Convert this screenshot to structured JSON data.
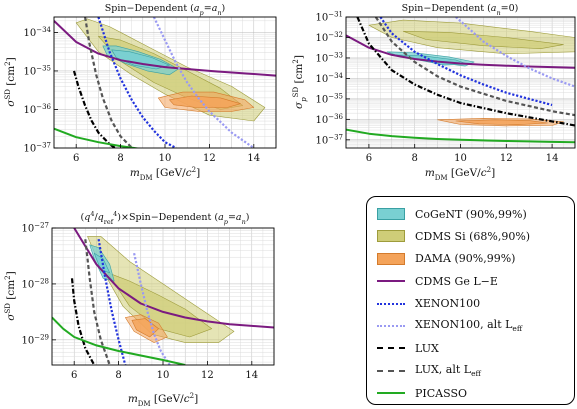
{
  "colors": {
    "CoGeNT": "#79d0d2",
    "CDMS_Si": "#cfcd78",
    "DAMA": "#f4a35a",
    "CDMS_Ge": "#7b1a80",
    "XENON100": "#2233dd",
    "XENON100_alt": "#9a9af2",
    "LUX": "#000000",
    "LUX_alt": "#555555",
    "PICASSO": "#22aa22"
  },
  "legend": {
    "items": [
      {
        "key": "CoGeNT",
        "label": "CoGeNT (90%,99%)",
        "kind": "swatch"
      },
      {
        "key": "CDMS_Si",
        "label": "CDMS Si (68%,90%)",
        "kind": "swatch"
      },
      {
        "key": "DAMA",
        "label": "DAMA (90%,99%)",
        "kind": "swatch"
      },
      {
        "key": "CDMS_Ge",
        "label": "CDMS Ge L−E",
        "kind": "solid"
      },
      {
        "key": "XENON100",
        "label": "XENON100",
        "kind": "dotted"
      },
      {
        "key": "XENON100_alt",
        "label": "XENON100, alt L",
        "sub": "eff",
        "kind": "dotted"
      },
      {
        "key": "LUX",
        "label": "LUX",
        "kind": "dashdot"
      },
      {
        "key": "LUX_alt",
        "label": "LUX, alt L",
        "sub": "eff",
        "kind": "dashed"
      },
      {
        "key": "PICASSO",
        "label": "PICASSO",
        "kind": "solid"
      }
    ]
  },
  "chart_data": [
    {
      "type": "line",
      "title": "Spin−Dependent (a_p=a_n)",
      "xlabel": "m_DM [GeV/c^2]",
      "ylabel": "σ^SD [cm^2]",
      "x_ticks": [
        "6",
        "8",
        "10",
        "12",
        "14"
      ],
      "y_ticks": [
        "10^-37",
        "10^-36",
        "10^-35",
        "10^-34"
      ],
      "xlim": [
        5,
        15
      ],
      "ylim_log10": [
        -37,
        -33.6
      ],
      "yscale": "log",
      "grid": true,
      "series": [
        {
          "name": "CDMS Ge L−E",
          "x": [
            5,
            6,
            7,
            8,
            9,
            10,
            11,
            12,
            13,
            14,
            15
          ],
          "log10_y": [
            -33.7,
            -34.25,
            -34.55,
            -34.72,
            -34.82,
            -34.9,
            -34.95,
            -35.0,
            -35.04,
            -35.08,
            -35.12
          ]
        },
        {
          "name": "XENON100",
          "x": [
            7.0,
            7.5,
            8.0,
            8.5,
            9.0,
            9.5,
            10.0,
            10.5
          ],
          "log10_y": [
            -33.6,
            -34.5,
            -35.2,
            -35.75,
            -36.2,
            -36.55,
            -36.85,
            -37.0
          ]
        },
        {
          "name": "XENON100, alt L_eff",
          "x": [
            9.5,
            10.0,
            10.5,
            11.0,
            11.5,
            12.0,
            13.0,
            14.0
          ],
          "log10_y": [
            -33.6,
            -34.2,
            -34.8,
            -35.3,
            -35.7,
            -36.05,
            -36.6,
            -37.0
          ]
        },
        {
          "name": "LUX",
          "x": [
            5.9,
            6.1,
            6.4,
            6.7,
            7.0,
            7.5,
            8.0,
            8.6
          ],
          "log10_y": [
            -35.0,
            -35.4,
            -35.9,
            -36.3,
            -36.6,
            -36.9,
            -37.1,
            -37.3
          ]
        },
        {
          "name": "LUX, alt L_eff",
          "x": [
            6.4,
            6.6,
            6.9,
            7.2,
            7.6,
            8.0,
            8.6
          ],
          "log10_y": [
            -33.6,
            -34.3,
            -35.1,
            -35.7,
            -36.3,
            -36.7,
            -37.05
          ]
        },
        {
          "name": "PICASSO",
          "x": [
            5,
            6,
            7,
            8,
            9,
            10,
            11,
            12,
            13,
            14,
            15
          ],
          "log10_y": [
            -36.5,
            -36.72,
            -36.85,
            -36.95,
            -37.03,
            -37.08,
            -37.12,
            -37.15,
            -37.18,
            -37.2,
            -37.22
          ]
        }
      ],
      "regions": [
        {
          "name": "CDMS Si 90%",
          "x": [
            6.0,
            6.5,
            7.5,
            9.0,
            11.0,
            13.0,
            14.5,
            14.0,
            12.0,
            10.0,
            8.5,
            7.0
          ],
          "log10_y": [
            -33.75,
            -33.65,
            -33.85,
            -34.3,
            -34.9,
            -35.4,
            -35.95,
            -36.3,
            -36.15,
            -35.6,
            -35.1,
            -34.5
          ]
        },
        {
          "name": "CDMS Si 68%",
          "x": [
            7.0,
            8.0,
            9.5,
            11.0,
            12.5,
            13.5,
            12.5,
            11.0,
            9.5,
            8.0
          ],
          "log10_y": [
            -34.1,
            -34.2,
            -34.55,
            -35.0,
            -35.45,
            -35.9,
            -36.0,
            -35.7,
            -35.3,
            -34.75
          ]
        },
        {
          "name": "CoGeNT 99%",
          "x": [
            7.2,
            7.8,
            8.8,
            9.8,
            10.6,
            10.2,
            9.2,
            8.2,
            7.4
          ],
          "log10_y": [
            -34.35,
            -34.35,
            -34.5,
            -34.7,
            -34.95,
            -35.1,
            -35.0,
            -34.8,
            -34.6
          ]
        },
        {
          "name": "CoGeNT 90%",
          "x": [
            7.6,
            8.4,
            9.4,
            10.2,
            9.6,
            8.6,
            7.8
          ],
          "log10_y": [
            -34.45,
            -34.5,
            -34.65,
            -34.85,
            -34.95,
            -34.85,
            -34.65
          ]
        },
        {
          "name": "DAMA 99%",
          "x": [
            9.7,
            10.8,
            12.2,
            13.6,
            14.0,
            13.0,
            11.5,
            10.0
          ],
          "log10_y": [
            -35.7,
            -35.55,
            -35.55,
            -35.75,
            -35.95,
            -36.05,
            -36.05,
            -35.95
          ]
        },
        {
          "name": "DAMA 90%",
          "x": [
            10.2,
            11.2,
            12.5,
            13.4,
            12.8,
            11.4,
            10.4
          ],
          "log10_y": [
            -35.75,
            -35.65,
            -35.7,
            -35.85,
            -35.95,
            -35.95,
            -35.88
          ]
        }
      ]
    },
    {
      "type": "line",
      "title": "Spin−Dependent (a_n=0)",
      "xlabel": "m_DM [GeV/c^2]",
      "ylabel": "σ_p^SD [cm^2]",
      "x_ticks": [
        "6",
        "8",
        "10",
        "12",
        "14"
      ],
      "y_ticks": [
        "10^-37",
        "10^-36",
        "10^-35",
        "10^-34",
        "10^-33",
        "10^-32",
        "10^-31"
      ],
      "xlim": [
        5,
        15
      ],
      "ylim_log10": [
        -37.4,
        -31
      ],
      "yscale": "log",
      "grid": true,
      "series": [
        {
          "name": "CDMS Ge L−E",
          "x": [
            5,
            6,
            7,
            8,
            9,
            10,
            11,
            12,
            13,
            14,
            15
          ],
          "log10_y": [
            -31.9,
            -32.5,
            -32.85,
            -33.05,
            -33.18,
            -33.27,
            -33.33,
            -33.38,
            -33.42,
            -33.45,
            -33.48
          ]
        },
        {
          "name": "XENON100",
          "x": [
            6.5,
            7.0,
            8.0,
            9.0,
            10.0,
            11.0,
            12.0,
            13.0,
            14.0
          ],
          "log10_y": [
            -31.0,
            -31.8,
            -32.7,
            -33.3,
            -33.85,
            -34.3,
            -34.7,
            -35.0,
            -35.3
          ]
        },
        {
          "name": "XENON100, alt L_eff",
          "x": [
            9.8,
            10.5,
            11.0,
            12.0,
            13.0,
            14.0,
            15.0
          ],
          "log10_y": [
            -31.0,
            -31.7,
            -32.2,
            -32.9,
            -33.5,
            -34.0,
            -34.4
          ]
        },
        {
          "name": "LUX",
          "x": [
            5.5,
            6.0,
            7.0,
            8.0,
            9.0,
            10.0,
            12.0,
            14.0,
            15.0
          ],
          "log10_y": [
            -31.0,
            -32.3,
            -33.6,
            -34.3,
            -34.8,
            -35.2,
            -35.7,
            -36.1,
            -36.3
          ]
        },
        {
          "name": "LUX, alt L_eff",
          "x": [
            6.3,
            7.0,
            8.0,
            9.0,
            10.0,
            12.0,
            14.0,
            15.0
          ],
          "log10_y": [
            -31.0,
            -32.2,
            -33.2,
            -33.9,
            -34.4,
            -35.1,
            -35.6,
            -35.8
          ]
        },
        {
          "name": "PICASSO",
          "x": [
            5,
            6,
            7,
            8,
            9,
            10,
            11,
            12,
            13,
            14,
            15
          ],
          "log10_y": [
            -36.5,
            -36.7,
            -36.82,
            -36.9,
            -36.96,
            -37.0,
            -37.03,
            -37.06,
            -37.08,
            -37.1,
            -37.12
          ]
        }
      ],
      "regions": [
        {
          "name": "CDMS Si 90%",
          "x": [
            6.0,
            7.5,
            10.0,
            13.0,
            15.0,
            15.0,
            12.0,
            9.0,
            7.0
          ],
          "log10_y": [
            -31.4,
            -31.15,
            -31.3,
            -31.7,
            -32.0,
            -32.7,
            -32.8,
            -32.5,
            -32.0
          ]
        },
        {
          "name": "CDMS Si 68%",
          "x": [
            7.5,
            9.5,
            12.0,
            14.5,
            13.5,
            11.0,
            8.5
          ],
          "log10_y": [
            -31.7,
            -31.75,
            -32.0,
            -32.35,
            -32.55,
            -32.4,
            -32.1
          ]
        },
        {
          "name": "CoGeNT 99%",
          "x": [
            6.8,
            8.0,
            9.5,
            10.6,
            10.2,
            8.8,
            7.4
          ],
          "log10_y": [
            -32.7,
            -32.75,
            -32.95,
            -33.2,
            -33.4,
            -33.2,
            -32.95
          ]
        },
        {
          "name": "CoGeNT 90%",
          "x": [
            7.2,
            8.4,
            9.8,
            10.3,
            9.3,
            7.9
          ],
          "log10_y": [
            -32.85,
            -32.9,
            -33.1,
            -33.3,
            -33.35,
            -33.05
          ]
        },
        {
          "name": "DAMA 99%",
          "x": [
            9.0,
            11.0,
            13.0,
            14.5,
            14.0,
            12.0,
            10.0
          ],
          "log10_y": [
            -36.02,
            -35.95,
            -35.98,
            -36.12,
            -36.3,
            -36.32,
            -36.25
          ]
        },
        {
          "name": "DAMA 90%",
          "x": [
            9.8,
            11.5,
            13.0,
            13.8,
            12.5,
            10.8
          ],
          "log10_y": [
            -36.08,
            -36.02,
            -36.06,
            -36.18,
            -36.26,
            -36.22
          ]
        }
      ]
    },
    {
      "type": "line",
      "title": "(q^4/q_ref^4)×Spin−Dependent (a_p=a_n)",
      "xlabel": "m_DM [GeV/c^2]",
      "ylabel": "σ^SD [cm^2]",
      "x_ticks": [
        "6",
        "8",
        "10",
        "12",
        "14"
      ],
      "y_ticks": [
        "10^-29",
        "10^-28",
        "10^-27"
      ],
      "xlim": [
        5,
        15
      ],
      "ylim_log10": [
        -29.45,
        -27
      ],
      "yscale": "log",
      "grid": true,
      "series": [
        {
          "name": "CDMS Ge L−E",
          "x": [
            6.0,
            7.0,
            8.0,
            9.0,
            10.0,
            11.0,
            12.0,
            13.0,
            14.0,
            15.0
          ],
          "log10_y": [
            -27.0,
            -27.65,
            -28.08,
            -28.35,
            -28.5,
            -28.6,
            -28.67,
            -28.72,
            -28.75,
            -28.78
          ]
        },
        {
          "name": "XENON100",
          "x": [
            7.1,
            7.4,
            7.7,
            8.0,
            8.3
          ],
          "log10_y": [
            -27.2,
            -27.9,
            -28.5,
            -29.0,
            -29.45
          ]
        },
        {
          "name": "XENON100, alt L_eff",
          "x": [
            8.7,
            9.0,
            9.3,
            9.6,
            9.9,
            10.3
          ],
          "log10_y": [
            -27.45,
            -28.0,
            -28.5,
            -28.9,
            -29.2,
            -29.45
          ]
        },
        {
          "name": "LUX",
          "x": [
            5.9,
            6.0,
            6.2,
            6.5,
            6.9
          ],
          "log10_y": [
            -27.9,
            -28.3,
            -28.75,
            -29.15,
            -29.45
          ]
        },
        {
          "name": "LUX, alt L_eff",
          "x": [
            6.5,
            6.7,
            6.9,
            7.2,
            7.6
          ],
          "log10_y": [
            -27.2,
            -27.9,
            -28.5,
            -29.0,
            -29.45
          ]
        },
        {
          "name": "PICASSO",
          "x": [
            5.0,
            5.5,
            6.0,
            7.0,
            8.0,
            9.0,
            10.0,
            11.0
          ],
          "log10_y": [
            -28.6,
            -28.8,
            -28.95,
            -29.1,
            -29.2,
            -29.28,
            -29.36,
            -29.45
          ]
        }
      ],
      "regions": [
        {
          "name": "CDMS Si 90%",
          "x": [
            6.6,
            7.2,
            8.5,
            10.0,
            11.5,
            13.2,
            12.5,
            11.0,
            9.5,
            8.2,
            7.2
          ],
          "log10_y": [
            -27.15,
            -27.15,
            -27.6,
            -28.0,
            -28.4,
            -28.85,
            -29.05,
            -29.05,
            -28.9,
            -28.4,
            -27.7
          ]
        },
        {
          "name": "CDMS Si 68%",
          "x": [
            7.5,
            8.5,
            9.8,
            11.0,
            12.2,
            11.2,
            9.8,
            8.5
          ],
          "log10_y": [
            -27.8,
            -27.95,
            -28.2,
            -28.45,
            -28.8,
            -28.95,
            -28.8,
            -28.4
          ]
        },
        {
          "name": "CoGeNT 99%",
          "x": [
            6.7,
            7.1,
            7.6,
            7.8,
            7.3,
            6.9
          ],
          "log10_y": [
            -27.3,
            -27.35,
            -27.65,
            -27.95,
            -27.9,
            -27.55
          ]
        },
        {
          "name": "CoGeNT 90%",
          "x": [
            6.9,
            7.3,
            7.6,
            7.2
          ],
          "log10_y": [
            -27.45,
            -27.55,
            -27.8,
            -27.75
          ]
        },
        {
          "name": "DAMA 99%",
          "x": [
            8.3,
            9.0,
            9.8,
            10.2,
            9.6,
            8.7
          ],
          "log10_y": [
            -28.6,
            -28.55,
            -28.7,
            -28.95,
            -29.05,
            -28.85
          ]
        },
        {
          "name": "DAMA 90%",
          "x": [
            8.6,
            9.2,
            9.8,
            9.4,
            8.8
          ],
          "log10_y": [
            -28.65,
            -28.62,
            -28.8,
            -28.95,
            -28.82
          ]
        }
      ]
    }
  ]
}
